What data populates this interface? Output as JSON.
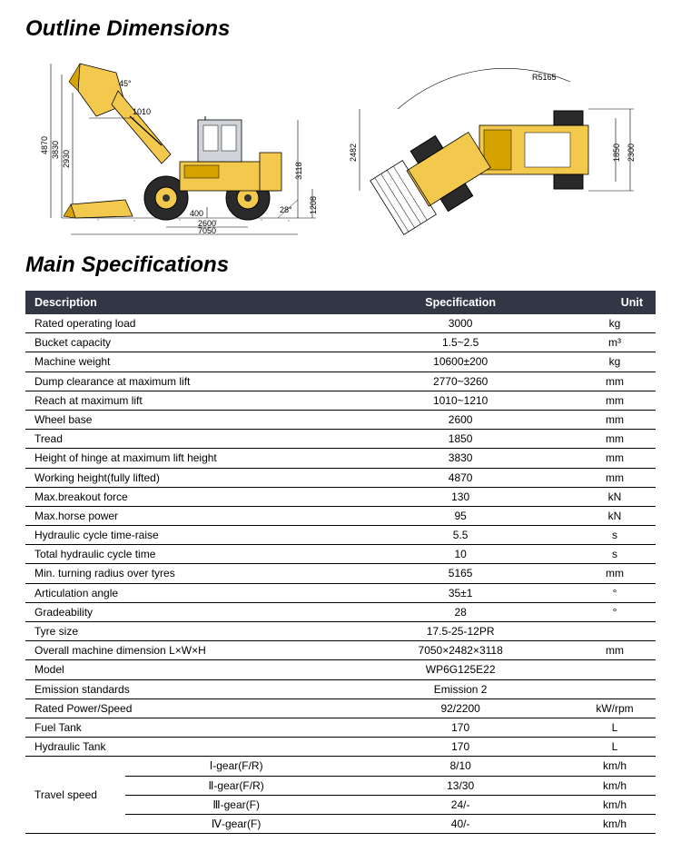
{
  "titles": {
    "outline": "Outline Dimensions",
    "specs": "Main Specifications"
  },
  "diagram": {
    "side": {
      "h_total": "4870",
      "h_hinge": "3830",
      "h_dump": "2930",
      "ang_bucket": "45°",
      "reach": "1010",
      "h_cab": "3118",
      "ang_depart": "28°",
      "clr": "400",
      "h_axle": "1208",
      "wheelbase": "2600",
      "length": "7050"
    },
    "top": {
      "radius": "R5165",
      "width": "2482",
      "tread": "1850",
      "overall_w": "2300"
    },
    "colors": {
      "body": "#f2c94c",
      "body_dark": "#d6a200",
      "tire": "#2a2a2a",
      "cab": "#d0d4d8",
      "outline": "#000000"
    }
  },
  "table": {
    "headers": {
      "desc": "Description",
      "spec": "Specification",
      "unit": "Unit"
    },
    "rows": [
      {
        "d": "Rated operating load",
        "s": "3000",
        "u": "kg"
      },
      {
        "d": "Bucket capacity",
        "s": "1.5~2.5",
        "u": "m³"
      },
      {
        "d": "Machine weight",
        "s": "10600±200",
        "u": "kg"
      },
      {
        "d": "Dump clearance at maximum lift",
        "s": "2770~3260",
        "u": "mm"
      },
      {
        "d": "Reach at maximum lift",
        "s": "1010~1210",
        "u": "mm"
      },
      {
        "d": "Wheel base",
        "s": "2600",
        "u": "mm"
      },
      {
        "d": "Tread",
        "s": "1850",
        "u": "mm"
      },
      {
        "d": "Height of hinge at maximum lift height",
        "s": "3830",
        "u": "mm"
      },
      {
        "d": "Working height(fully lifted)",
        "s": "4870",
        "u": "mm"
      },
      {
        "d": "Max.breakout force",
        "s": "130",
        "u": "kN"
      },
      {
        "d": "Max.horse power",
        "s": "95",
        "u": "kN"
      },
      {
        "d": "Hydraulic cycle time-raise",
        "s": "5.5",
        "u": "s"
      },
      {
        "d": "Total hydraulic cycle time",
        "s": "10",
        "u": "s"
      },
      {
        "d": "Min. turning radius over tyres",
        "s": "5165",
        "u": "mm"
      },
      {
        "d": "Articulation angle",
        "s": "35±1",
        "u": "°"
      },
      {
        "d": "Gradeability",
        "s": "28",
        "u": "°"
      },
      {
        "d": "Tyre size",
        "s": "17.5-25-12PR",
        "u": ""
      },
      {
        "d": "Overall machine dimension L×W×H",
        "s": "7050×2482×3118",
        "u": "mm"
      },
      {
        "d": "Model",
        "s": "WP6G125E22",
        "u": ""
      },
      {
        "d": "Emission standards",
        "s": "Emission 2",
        "u": ""
      },
      {
        "d": "Rated Power/Speed",
        "s": "92/2200",
        "u": "kW/rpm"
      },
      {
        "d": "Fuel Tank",
        "s": "170",
        "u": "L"
      },
      {
        "d": "Hydraulic Tank",
        "s": "170",
        "u": "L"
      }
    ],
    "travel": {
      "label": "Travel speed",
      "gears": [
        {
          "g": "Ⅰ-gear(F/R)",
          "s": "8/10",
          "u": "km/h"
        },
        {
          "g": "Ⅱ-gear(F/R)",
          "s": "13/30",
          "u": "km/h"
        },
        {
          "g": "Ⅲ-gear(F)",
          "s": "24/-",
          "u": "km/h"
        },
        {
          "g": "Ⅳ-gear(F)",
          "s": "40/-",
          "u": "km/h"
        }
      ]
    }
  }
}
